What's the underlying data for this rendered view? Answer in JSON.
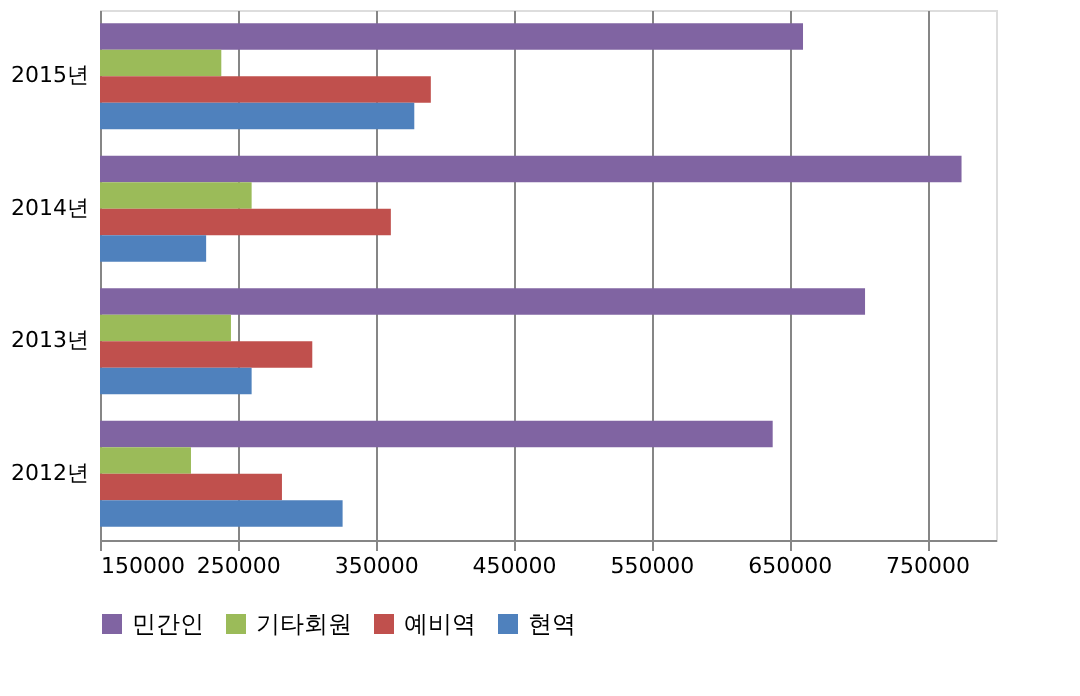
{
  "chart_data": {
    "type": "bar",
    "orientation": "horizontal",
    "categories": [
      "2015년",
      "2014년",
      "2013년",
      "2012년"
    ],
    "series": [
      {
        "name": "민간인",
        "color": "#8064a2",
        "values": [
          660000,
          775000,
          705000,
          638000
        ]
      },
      {
        "name": "기타회원",
        "color": "#9bbb59",
        "values": [
          238000,
          260000,
          245000,
          216000
        ]
      },
      {
        "name": "예비역",
        "color": "#c0504d",
        "values": [
          390000,
          361000,
          304000,
          282000
        ]
      },
      {
        "name": "현역",
        "color": "#4f81bd",
        "values": [
          378000,
          227000,
          260000,
          326000
        ]
      }
    ],
    "xlim": [
      150000,
      800000
    ],
    "xticks": [
      150000,
      250000,
      350000,
      450000,
      550000,
      650000,
      750000
    ],
    "grid": "x",
    "legend": "bottom"
  }
}
